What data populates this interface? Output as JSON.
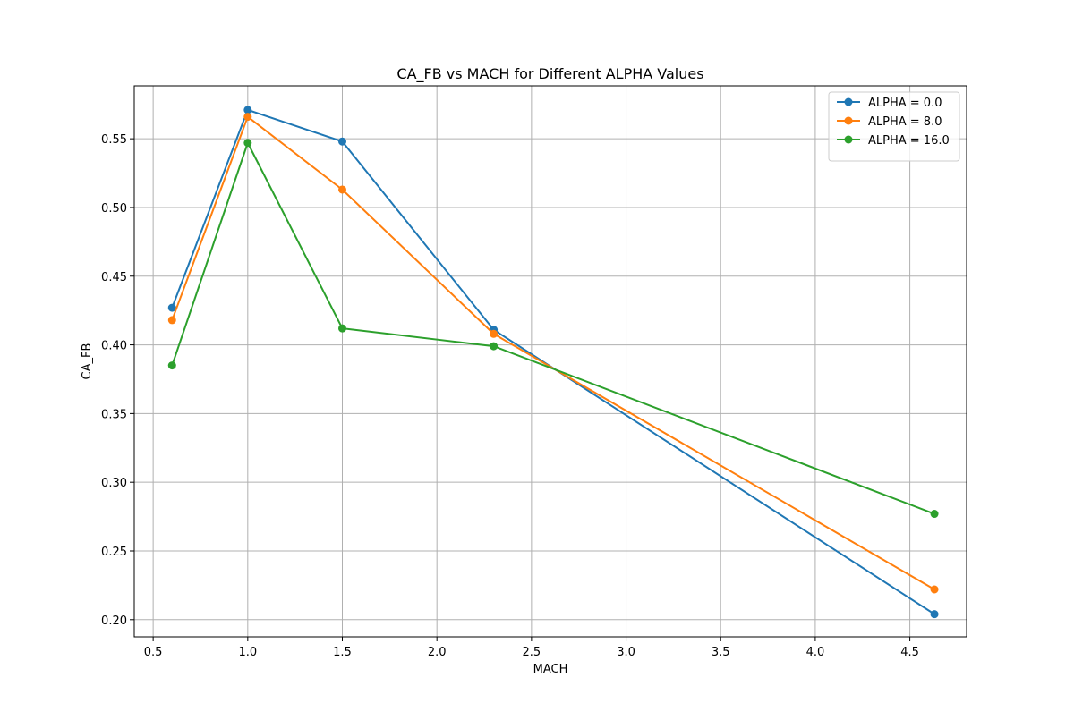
{
  "chart_data": {
    "type": "line",
    "title": "CA_FB vs MACH for Different ALPHA Values",
    "xlabel": "MACH",
    "ylabel": "CA_FB",
    "xlim": [
      0.4,
      4.8
    ],
    "ylim": [
      0.1875,
      0.5885
    ],
    "xticks": [
      0.5,
      1.0,
      1.5,
      2.0,
      2.5,
      3.0,
      3.5,
      4.0,
      4.5
    ],
    "xtick_labels": [
      "0.5",
      "1.0",
      "1.5",
      "2.0",
      "2.5",
      "3.0",
      "3.5",
      "4.0",
      "4.5"
    ],
    "yticks": [
      0.2,
      0.25,
      0.3,
      0.35,
      0.4,
      0.45,
      0.5,
      0.55
    ],
    "ytick_labels": [
      "0.20",
      "0.25",
      "0.30",
      "0.35",
      "0.40",
      "0.45",
      "0.50",
      "0.55"
    ],
    "grid": true,
    "legend_position": "top-right",
    "x": [
      0.6,
      1.0,
      1.5,
      2.3,
      4.63
    ],
    "series": [
      {
        "name": "ALPHA = 0.0",
        "color": "#1f77b4",
        "values": [
          0.427,
          0.571,
          0.548,
          0.411,
          0.204
        ]
      },
      {
        "name": "ALPHA = 8.0",
        "color": "#ff7f0e",
        "values": [
          0.418,
          0.566,
          0.513,
          0.408,
          0.222
        ]
      },
      {
        "name": "ALPHA = 16.0",
        "color": "#2ca02c",
        "values": [
          0.385,
          0.547,
          0.412,
          0.399,
          0.277
        ]
      }
    ]
  }
}
